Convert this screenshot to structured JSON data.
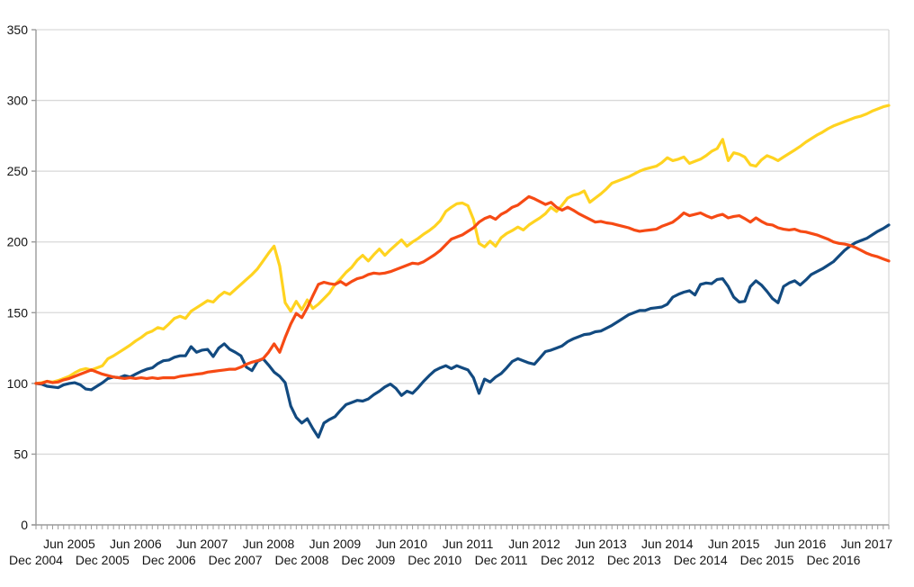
{
  "chart_data": {
    "type": "line",
    "title": "",
    "xlabel": "",
    "ylabel": "",
    "ylim": [
      0,
      350
    ],
    "y_ticks": [
      0,
      50,
      100,
      150,
      200,
      250,
      300,
      350
    ],
    "grid": "horizontal",
    "legend": "none",
    "x_unit": "month",
    "x_start": "Dec 2004",
    "x_major_tick_labels_upper_row": [
      "Jun 2005",
      "Jun 2006",
      "Jun 2007",
      "Jun 2008",
      "Jun 2009",
      "Jun 2010",
      "Jun 2011",
      "Jun 2012",
      "Jun 2013",
      "Jun 2014",
      "Jun 2015",
      "Jun 2016",
      "Jun 2017"
    ],
    "x_major_tick_labels_lower_row": [
      "Dec 2004",
      "Dec 2005",
      "Dec 2006",
      "Dec 2007",
      "Dec 2008",
      "Dec 2009",
      "Dec 2010",
      "Dec 2011",
      "Dec 2012",
      "Dec 2013",
      "Dec 2014",
      "Dec 2015",
      "Dec 2016"
    ],
    "upper_row_month_offset": 6,
    "lower_row_month_offset": 0,
    "months_between_labels": 12,
    "colors": {
      "grid": "#d9d9d9",
      "axis": "#9b9b9b",
      "text": "#141414",
      "background": "#ffffff"
    },
    "series": [
      {
        "name": "dark-blue",
        "color": "#124a80",
        "start_value": 100,
        "end_value": 212,
        "values": [
          100,
          99.5,
          98,
          97.5,
          97,
          99,
          100,
          100.5,
          99,
          96,
          95.5,
          98,
          100.5,
          103.5,
          104.5,
          104,
          105.5,
          104.5,
          106.5,
          108.5,
          110,
          111,
          114,
          116,
          116.5,
          118.5,
          119.5,
          119.5,
          126,
          122,
          123.5,
          124,
          119,
          125,
          128,
          124,
          122,
          119.5,
          111.5,
          109,
          115.5,
          117.5,
          113,
          108,
          105,
          100.5,
          84,
          76,
          72,
          75,
          68,
          62,
          72,
          74.5,
          76.5,
          81,
          85,
          86.5,
          88,
          87.5,
          89,
          92,
          94.5,
          97.5,
          99.5,
          96.5,
          91.5,
          94.5,
          93,
          97,
          101.5,
          105.5,
          109,
          111,
          112.5,
          110.5,
          112.5,
          111,
          109.5,
          104,
          93,
          103,
          101,
          104.5,
          107,
          111,
          115.5,
          117.5,
          116,
          114.5,
          113.5,
          118,
          122.5,
          123.5,
          125,
          126.5,
          129.5,
          131.5,
          133,
          134.5,
          135,
          136.5,
          137,
          139,
          141,
          143.5,
          146,
          148.5,
          150,
          151.5,
          151.5,
          153,
          153.5,
          154,
          156,
          161,
          163,
          164.5,
          165.5,
          162.5,
          170,
          171,
          170.5,
          173.5,
          174,
          168.5,
          161,
          157.5,
          158,
          168.5,
          172.5,
          169.5,
          165,
          160,
          157,
          168.5,
          171,
          172.5,
          169.5,
          173,
          177,
          179,
          181,
          183.5,
          186,
          190,
          194,
          197,
          199.5,
          201,
          202.5,
          205,
          207.5,
          209.5,
          212
        ]
      },
      {
        "name": "yellow",
        "color": "#ffd320",
        "start_value": 100,
        "end_value": 296.5,
        "values": [
          100,
          100.5,
          101.5,
          101,
          102,
          103.5,
          105,
          107.5,
          109.5,
          110.5,
          109.5,
          111,
          112.5,
          117.5,
          119.5,
          122,
          124.5,
          127,
          130,
          132.5,
          135.5,
          137,
          139.5,
          138.5,
          142,
          146,
          147.5,
          146,
          151,
          153.5,
          156,
          158.5,
          157.5,
          161.5,
          164.5,
          163,
          166.5,
          170,
          173.5,
          177,
          181,
          186.5,
          192,
          197,
          183,
          157,
          151,
          158,
          152,
          159,
          153,
          156,
          160,
          164,
          170,
          174,
          178.5,
          182,
          187,
          190.5,
          186.5,
          191,
          195,
          190.5,
          194.5,
          198,
          201.5,
          197,
          200,
          202.5,
          205.5,
          208,
          211,
          215,
          221.5,
          224.5,
          227,
          227.5,
          225.5,
          216,
          199,
          196.5,
          200.5,
          197,
          203,
          206,
          208,
          210.5,
          208.5,
          212,
          214.5,
          217,
          220,
          224.5,
          221.5,
          226,
          231,
          233,
          234,
          236,
          228,
          231,
          234,
          237.5,
          241.5,
          243,
          244.5,
          246,
          248,
          250,
          251.5,
          252.5,
          253.5,
          256,
          259.5,
          257.5,
          258.5,
          260,
          255.5,
          257,
          258.5,
          261,
          264,
          266,
          272.5,
          257.5,
          263,
          262,
          260,
          254.5,
          253.5,
          258,
          261,
          259.5,
          257.5,
          260,
          262.5,
          265,
          267.5,
          270.5,
          273,
          275.5,
          277.5,
          280,
          282,
          283.5,
          285,
          286.5,
          288,
          289,
          290.5,
          292.5,
          294,
          295.5,
          296.5
        ]
      },
      {
        "name": "orange-red",
        "color": "#f64a14",
        "start_value": 100,
        "end_value": 186.5,
        "values": [
          100,
          100,
          101.5,
          100.5,
          101,
          102.5,
          103.5,
          105,
          106.5,
          108,
          109.5,
          108,
          106.5,
          105.5,
          104.5,
          104,
          103.5,
          104,
          103.5,
          104,
          103.5,
          104,
          103.5,
          104,
          104,
          104,
          105,
          105.5,
          106,
          106.5,
          107,
          108,
          108.5,
          109,
          109.5,
          110,
          110,
          111.5,
          113.5,
          115,
          116,
          117.5,
          122,
          128,
          122,
          132.5,
          142,
          149.5,
          146.5,
          153.5,
          162,
          170,
          171.5,
          170.5,
          170,
          172,
          169.5,
          172,
          174,
          175,
          177,
          178,
          177.5,
          178,
          179,
          180.5,
          182,
          183.5,
          185,
          184.5,
          186,
          188.5,
          191,
          194,
          198,
          202,
          203.5,
          205,
          207.5,
          210,
          214,
          216.5,
          218,
          216,
          219.5,
          221.5,
          224.5,
          226,
          229,
          232,
          230.5,
          228.5,
          226.5,
          228,
          224.5,
          222.5,
          224.5,
          222.5,
          220,
          218,
          216,
          214,
          214.5,
          213.5,
          213,
          212,
          211,
          210,
          208.5,
          207.5,
          208,
          208.5,
          209,
          211,
          212.5,
          214,
          217,
          220.5,
          218.5,
          219.5,
          220.5,
          218.5,
          217,
          218.5,
          219.5,
          217,
          218,
          218.5,
          216.5,
          214,
          217,
          214.5,
          212.5,
          212,
          210,
          209,
          208.5,
          209,
          207.5,
          207,
          206,
          205,
          203.5,
          202,
          200,
          199,
          198.5,
          197.5,
          196,
          194,
          192,
          190.5,
          189.5,
          188,
          186.5
        ]
      }
    ]
  }
}
